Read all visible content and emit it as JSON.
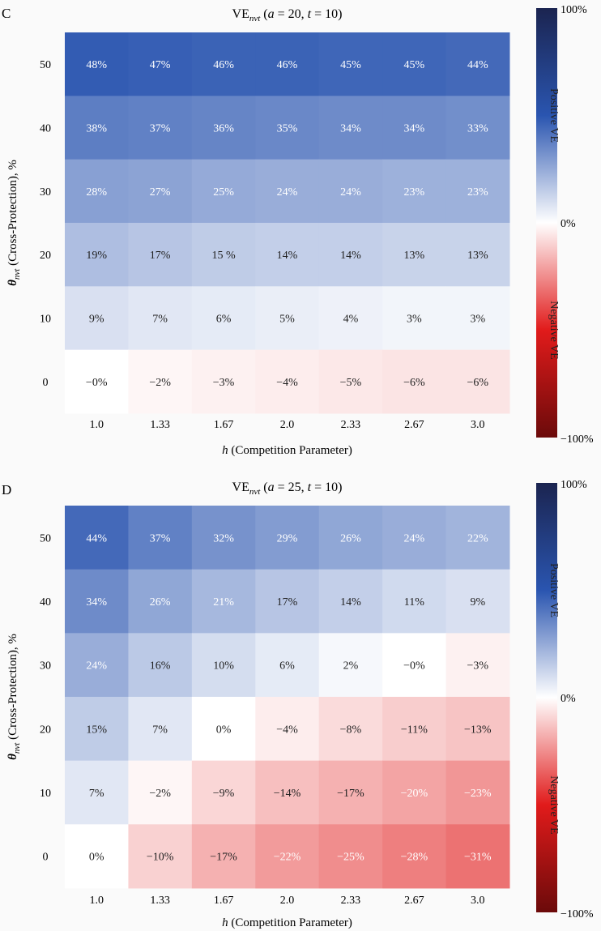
{
  "chart_data": [
    {
      "panel_letter": "C",
      "type": "heatmap",
      "title": "VE",
      "title_subscript": "nvt",
      "title_params": [
        {
          "sym": "a",
          "text": " = 20"
        },
        {
          "sym": "t",
          "text": " = 10"
        }
      ],
      "xlabel_symbol": "h",
      "xlabel": " (Competition Parameter)",
      "ylabel_symbol": "θ",
      "ylabel_subscript": "nvt",
      "ylabel": " (Cross-Protection), %",
      "x_categories": [
        "1.0",
        "1.33",
        "1.67",
        "2.0",
        "2.33",
        "2.67",
        "3.0"
      ],
      "y_categories": [
        "50",
        "40",
        "30",
        "20",
        "10",
        "0"
      ],
      "values": [
        [
          48,
          47,
          46,
          46,
          45,
          45,
          44
        ],
        [
          38,
          37,
          36,
          35,
          34,
          34,
          33
        ],
        [
          28,
          27,
          25,
          24,
          24,
          23,
          23
        ],
        [
          19,
          17,
          15,
          14,
          14,
          13,
          13
        ],
        [
          9,
          7,
          6,
          5,
          4,
          3,
          3
        ],
        [
          -0.1,
          -2,
          -3,
          -4,
          -5,
          -6,
          -6
        ]
      ],
      "cell_labels": [
        [
          "48%",
          "47%",
          "46%",
          "46%",
          "45%",
          "45%",
          "44%"
        ],
        [
          "38%",
          "37%",
          "36%",
          "35%",
          "34%",
          "34%",
          "33%"
        ],
        [
          "28%",
          "27%",
          "25%",
          "24%",
          "24%",
          "23%",
          "23%"
        ],
        [
          "19%",
          "17%",
          "15 %",
          "14%",
          "14%",
          "13%",
          "13%"
        ],
        [
          "9%",
          "7%",
          "6%",
          "5%",
          "4%",
          "3%",
          "3%"
        ],
        [
          "−0%",
          "−2%",
          "−3%",
          "−4%",
          "−5%",
          "−6%",
          "−6%"
        ]
      ],
      "colorbar": {
        "range": [
          -100,
          100
        ],
        "top_label": "100%",
        "mid_label": "0%",
        "bottom_label": "−100%",
        "positive_label": "Positive VE",
        "negative_label": "Negative VE"
      }
    },
    {
      "panel_letter": "D",
      "type": "heatmap",
      "title": "VE",
      "title_subscript": "nvt",
      "title_params": [
        {
          "sym": "a",
          "text": " = 25"
        },
        {
          "sym": "t",
          "text": " = 10"
        }
      ],
      "xlabel_symbol": "h",
      "xlabel": " (Competition Parameter)",
      "ylabel_symbol": "θ",
      "ylabel_subscript": "nvt",
      "ylabel": " (Cross-Protection), %",
      "x_categories": [
        "1.0",
        "1.33",
        "1.67",
        "2.0",
        "2.33",
        "2.67",
        "3.0"
      ],
      "y_categories": [
        "50",
        "40",
        "30",
        "20",
        "10",
        "0"
      ],
      "values": [
        [
          44,
          37,
          32,
          29,
          26,
          24,
          22
        ],
        [
          34,
          26,
          21,
          17,
          14,
          11,
          9
        ],
        [
          24,
          16,
          10,
          6,
          2,
          -0.1,
          -3
        ],
        [
          15,
          7,
          0,
          -4,
          -8,
          -11,
          -13
        ],
        [
          7,
          -2,
          -9,
          -14,
          -17,
          -20,
          -23
        ],
        [
          0,
          -10,
          -17,
          -22,
          -25,
          -28,
          -31
        ]
      ],
      "cell_labels": [
        [
          "44%",
          "37%",
          "32%",
          "29%",
          "26%",
          "24%",
          "22%"
        ],
        [
          "34%",
          "26%",
          "21%",
          "17%",
          "14%",
          "11%",
          "9%"
        ],
        [
          "24%",
          "16%",
          "10%",
          "6%",
          "2%",
          "−0%",
          "−3%"
        ],
        [
          "15%",
          "7%",
          "0%",
          "−4%",
          "−8%",
          "−11%",
          "−13%"
        ],
        [
          "7%",
          "−2%",
          "−9%",
          "−14%",
          "−17%",
          "−20%",
          "−23%"
        ],
        [
          "0%",
          "−10%",
          "−17%",
          "−22%",
          "−25%",
          "−28%",
          "−31%"
        ]
      ],
      "colorbar": {
        "range": [
          -100,
          100
        ],
        "top_label": "100%",
        "mid_label": "0%",
        "bottom_label": "−100%",
        "positive_label": "Positive VE",
        "negative_label": "Negative VE"
      }
    }
  ],
  "colors": {
    "cmap_stops": [
      "#6b0a0a",
      "#e11b1b",
      "#ffffff",
      "#2a55b0",
      "#1b2450"
    ],
    "background": "#fafafa",
    "text_dark": "#222222"
  }
}
